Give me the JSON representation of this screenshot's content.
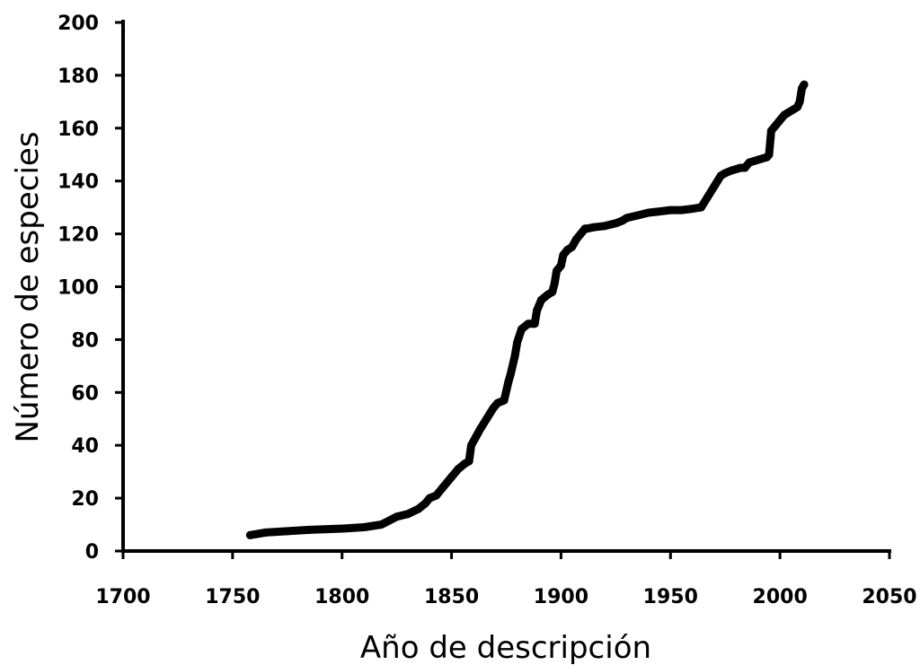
{
  "chart_data": {
    "type": "line",
    "title": "",
    "xlabel": "Año de descripción",
    "ylabel": "Número de especies",
    "xlim": [
      1700,
      2050
    ],
    "ylim": [
      0,
      200
    ],
    "x_ticks": [
      "1700",
      "1750",
      "1800",
      "1850",
      "1900",
      "1950",
      "2000",
      "2050"
    ],
    "y_ticks": [
      "0",
      "20",
      "40",
      "60",
      "80",
      "100",
      "120",
      "140",
      "160",
      "180",
      "200"
    ],
    "grid": false,
    "legend": "none",
    "colors": {
      "line": "#000000"
    },
    "series": [
      {
        "x": [
          1758,
          1765,
          1775,
          1785,
          1800,
          1810,
          1818,
          1825,
          1830,
          1835,
          1838,
          1840,
          1843,
          1846,
          1850,
          1853,
          1856,
          1858,
          1859,
          1861,
          1863,
          1866,
          1869,
          1871,
          1874,
          1876,
          1877,
          1879,
          1880,
          1882,
          1885,
          1888,
          1889,
          1891,
          1894,
          1896,
          1897,
          1898,
          1900,
          1901,
          1903,
          1905,
          1907,
          1909,
          1911,
          1912,
          1915,
          1920,
          1925,
          1928,
          1930,
          1935,
          1940,
          1945,
          1950,
          1955,
          1960,
          1964,
          1967,
          1970,
          1973,
          1975,
          1978,
          1982,
          1984,
          1986,
          1990,
          1994,
          1995,
          1996,
          1998,
          2000,
          2002,
          2004,
          2006,
          2008,
          2009,
          2010,
          2011
        ],
        "y": [
          6,
          7,
          7.5,
          8,
          8.5,
          9,
          10,
          13,
          14,
          16,
          18,
          20,
          21,
          24,
          28,
          31,
          33,
          34,
          40,
          43,
          46,
          50,
          54,
          56,
          57,
          64,
          67,
          74,
          79,
          84,
          86,
          86,
          91,
          95,
          97,
          98,
          101,
          106,
          108,
          112,
          114,
          115,
          118,
          120,
          122,
          122,
          122.5,
          123,
          124,
          125,
          126,
          127,
          128,
          128.5,
          129,
          129,
          129.5,
          130,
          134,
          138,
          142,
          143,
          144,
          145,
          145,
          147,
          148,
          149,
          150,
          159,
          161,
          163,
          165,
          166,
          167,
          168,
          170,
          175,
          176.5
        ]
      }
    ]
  }
}
